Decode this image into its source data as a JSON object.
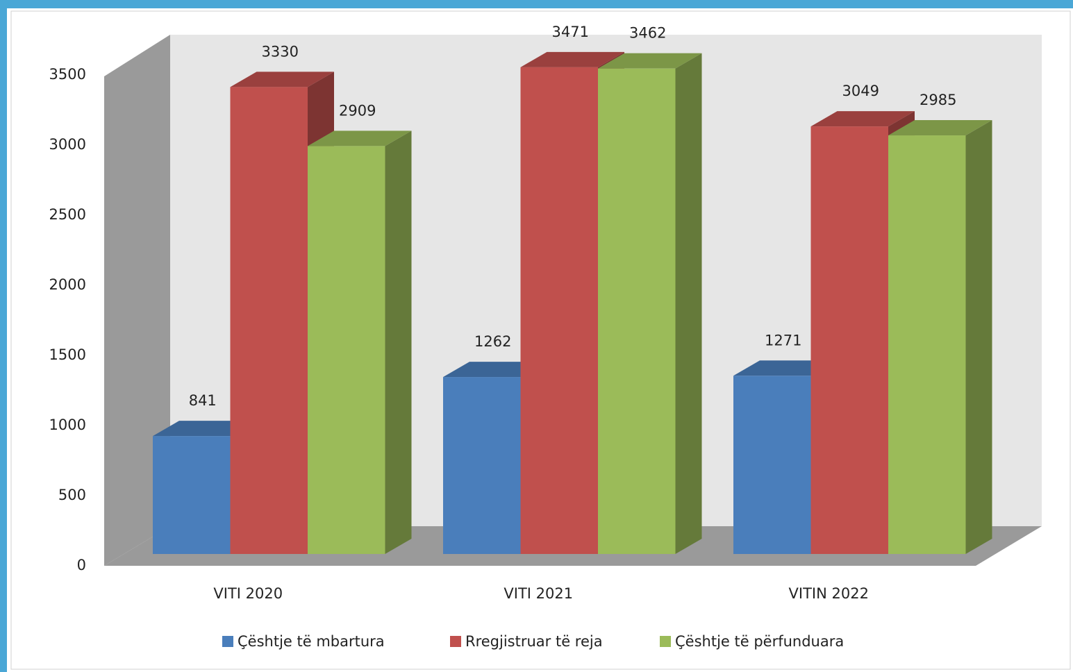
{
  "chart_data": {
    "type": "bar3d",
    "categories": [
      "VITI 2020",
      "VITI 2021",
      "VITIN 2022"
    ],
    "series": [
      {
        "name": "Çështje të mbartura",
        "color": "#4a7ebb",
        "values": [
          841,
          1262,
          1271
        ]
      },
      {
        "name": "Rregjistruar të reja",
        "color": "#c0504d",
        "values": [
          3330,
          3471,
          3049
        ]
      },
      {
        "name": "Çështje të përfunduara",
        "color": "#9bbb59",
        "values": [
          2909,
          3462,
          2985
        ]
      }
    ],
    "ylim": [
      0,
      3500
    ],
    "yticks": [
      0,
      500,
      1000,
      1500,
      2000,
      2500,
      3000,
      3500
    ],
    "legend": "bottom"
  }
}
